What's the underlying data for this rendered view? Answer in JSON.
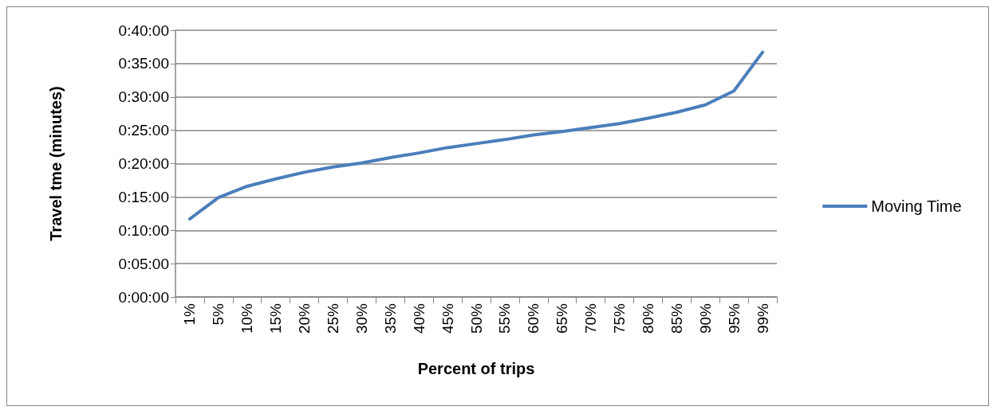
{
  "chart_data": {
    "type": "line",
    "xlabel": "Percent of trips",
    "ylabel": "Travel tme (minutes)",
    "categories": [
      "1%",
      "5%",
      "10%",
      "15%",
      "20%",
      "25%",
      "30%",
      "35%",
      "40%",
      "45%",
      "50%",
      "55%",
      "60%",
      "65%",
      "70%",
      "75%",
      "80%",
      "85%",
      "90%",
      "95%",
      "99%"
    ],
    "series": [
      {
        "name": "Moving Time",
        "color": "#4a7ebb",
        "values": [
          11.7,
          14.9,
          16.6,
          17.7,
          18.7,
          19.5,
          20.1,
          20.9,
          21.6,
          22.4,
          23.0,
          23.6,
          24.3,
          24.8,
          25.4,
          26.0,
          26.8,
          27.7,
          28.8,
          30.9,
          36.7
        ]
      }
    ],
    "ylim": [
      0,
      40
    ],
    "yticks": [
      {
        "value": 0,
        "label": "0:00:00"
      },
      {
        "value": 5,
        "label": "0:05:00"
      },
      {
        "value": 10,
        "label": "0:10:00"
      },
      {
        "value": 15,
        "label": "0:15:00"
      },
      {
        "value": 20,
        "label": "0:20:00"
      },
      {
        "value": 25,
        "label": "0:25:00"
      },
      {
        "value": 30,
        "label": "0:30:00"
      },
      {
        "value": 35,
        "label": "0:35:00"
      },
      {
        "value": 40,
        "label": "0:40:00"
      }
    ],
    "grid": "y",
    "legend": "right",
    "marker": "none",
    "line_style": "solid"
  }
}
